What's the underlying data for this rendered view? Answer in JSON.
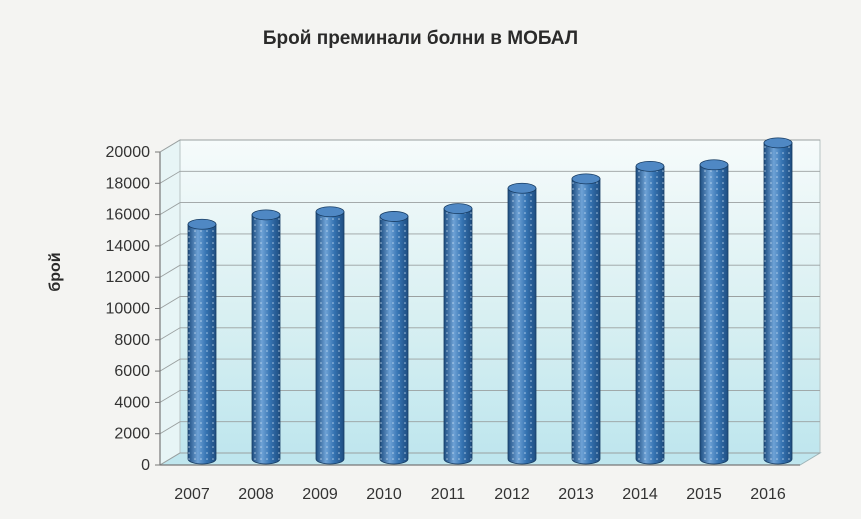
{
  "chart_data": {
    "type": "bar",
    "title": "Брой преминали болни в МОБАЛ",
    "xlabel": "",
    "ylabel": "брой",
    "categories": [
      "2007",
      "2008",
      "2009",
      "2010",
      "2011",
      "2012",
      "2013",
      "2014",
      "2015",
      "2016"
    ],
    "values": [
      15000,
      15600,
      15800,
      15500,
      16000,
      17300,
      17900,
      18700,
      18800,
      20200
    ],
    "ylim": [
      0,
      20000
    ],
    "yticks": [
      "0",
      "2000",
      "4000",
      "6000",
      "8000",
      "10000",
      "12000",
      "14000",
      "16000",
      "18000",
      "20000"
    ],
    "grid": true,
    "bar_style": "3d-cylinder",
    "colors": {
      "bar": "#3573b2",
      "bar_dark": "#1e4d80",
      "bar_light": "#6ea2d6",
      "floor": "#bfe6ee",
      "axis": "#999999"
    }
  }
}
